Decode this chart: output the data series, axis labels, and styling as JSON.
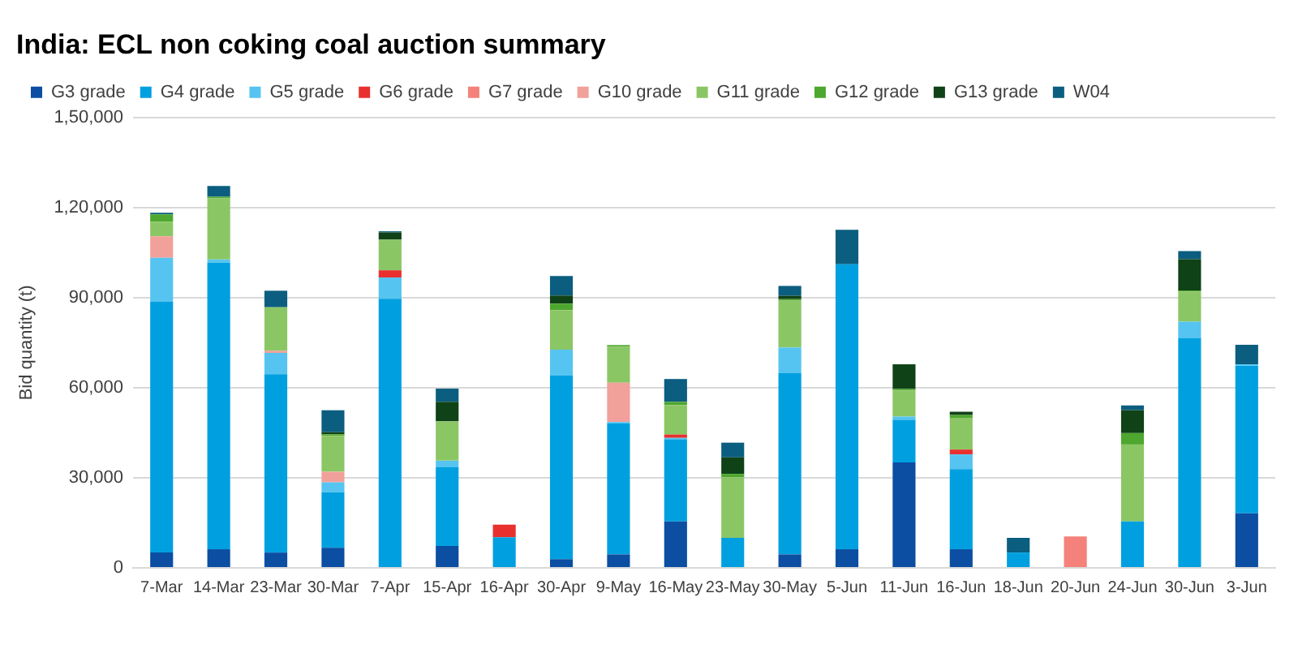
{
  "chart_data": {
    "type": "bar",
    "title": "India: ECL non coking coal auction summary",
    "ylabel": "Bid quantity (t)",
    "categories": [
      "7-Mar",
      "14-Mar",
      "23-Mar",
      "30-Mar",
      "7-Apr",
      "15-Apr",
      "16-Apr",
      "30-Apr",
      "9-May",
      "16-May",
      "23-May",
      "30-May",
      "5-Jun",
      "11-Jun",
      "16-Jun",
      "18-Jun",
      "20-Jun",
      "24-Jun",
      "30-Jun",
      "3-Jun"
    ],
    "series": [
      {
        "name": "G3 grade",
        "color": "#0b4ea2",
        "values": [
          5100,
          6200,
          5100,
          6700,
          null,
          7300,
          null,
          2900,
          4500,
          15500,
          null,
          4500,
          6200,
          35100,
          6200,
          null,
          null,
          null,
          null,
          18200
        ]
      },
      {
        "name": "G4 grade",
        "color": "#00a0e0",
        "values": [
          83500,
          95400,
          59400,
          18500,
          89600,
          26200,
          10200,
          61100,
          43600,
          27300,
          10000,
          60500,
          94900,
          14200,
          26700,
          5100,
          null,
          15500,
          76500,
          49100
        ]
      },
      {
        "name": "G5 grade",
        "color": "#56c4f0",
        "values": [
          14700,
          1100,
          7100,
          3300,
          7100,
          2200,
          null,
          8700,
          500,
          500,
          null,
          8400,
          null,
          1100,
          4900,
          null,
          null,
          null,
          5500,
          500
        ]
      },
      {
        "name": "G6 grade",
        "color": "#e8312f",
        "values": [
          null,
          null,
          null,
          null,
          2400,
          null,
          4200,
          null,
          null,
          1100,
          null,
          null,
          null,
          null,
          1600,
          null,
          null,
          null,
          null,
          null
        ]
      },
      {
        "name": "G7 grade",
        "color": "#f4827a",
        "values": [
          null,
          null,
          null,
          null,
          null,
          null,
          null,
          null,
          null,
          null,
          null,
          null,
          null,
          null,
          null,
          null,
          10500,
          null,
          null,
          null
        ]
      },
      {
        "name": "G10 grade",
        "color": "#f2a09a",
        "values": [
          7100,
          null,
          700,
          3500,
          null,
          null,
          null,
          null,
          13100,
          null,
          null,
          null,
          null,
          null,
          null,
          null,
          null,
          null,
          null,
          null
        ]
      },
      {
        "name": "G11 grade",
        "color": "#8bc664",
        "values": [
          4900,
          20400,
          14500,
          12000,
          10200,
          13100,
          null,
          13100,
          12000,
          9800,
          20200,
          15600,
          null,
          8700,
          10400,
          null,
          null,
          25600,
          10000,
          null
        ]
      },
      {
        "name": "G12 grade",
        "color": "#4ea72e",
        "values": [
          2400,
          500,
          null,
          500,
          null,
          null,
          null,
          2200,
          500,
          1100,
          1100,
          500,
          null,
          500,
          1100,
          null,
          null,
          3800,
          400,
          null
        ]
      },
      {
        "name": "G13 grade",
        "color": "#0f4217",
        "values": [
          null,
          null,
          null,
          700,
          2400,
          6500,
          null,
          2700,
          null,
          null,
          5500,
          1100,
          null,
          8200,
          1100,
          null,
          null,
          7600,
          10400,
          null
        ]
      },
      {
        "name": "W04",
        "color": "#0b5e7f",
        "values": [
          600,
          3600,
          5500,
          7300,
          400,
          4400,
          null,
          6500,
          null,
          7600,
          4900,
          3300,
          11500,
          null,
          null,
          4900,
          null,
          1600,
          2700,
          6500
        ]
      }
    ],
    "stacked": true,
    "ylim": [
      0,
      150000
    ],
    "yticks": [
      0,
      {
        "value": 30000,
        "label": "30,000"
      },
      {
        "value": 60000,
        "label": "60,000"
      },
      {
        "value": 90000,
        "label": "90,000"
      },
      {
        "value": 120000,
        "label": "1,20,000"
      },
      {
        "value": 150000,
        "label": "1,50,000"
      }
    ],
    "grid": "y",
    "legend": "top left"
  }
}
